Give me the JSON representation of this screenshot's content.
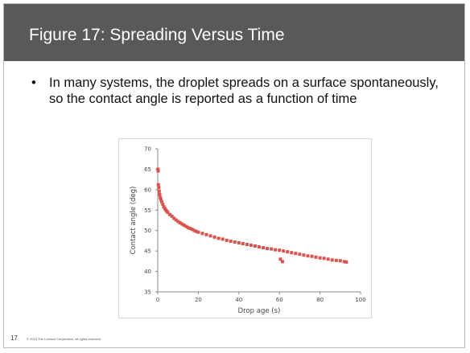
{
  "slide": {
    "title": "Figure 17: Spreading Versus Time",
    "bullet_symbol": "•",
    "bullet_text": "In many systems, the droplet spreads on a surface spontaneously, so the contact angle is reported as a function of time",
    "page_number": "17",
    "copyright": "© 2013 The Lubrizol Corporation, all rights reserved."
  },
  "colors": {
    "title_bar": "#595959",
    "marker": "#d9534f"
  },
  "chart_data": {
    "type": "scatter",
    "xlabel": "Drop age  (s)",
    "ylabel": "Contact angle  (deg)",
    "xlim": [
      0,
      100
    ],
    "ylim": [
      35,
      70
    ],
    "x_ticks": [
      "0",
      "20",
      "40",
      "60",
      "80",
      "100"
    ],
    "y_ticks": [
      "35",
      "40",
      "45",
      "50",
      "55",
      "60",
      "65",
      "70"
    ],
    "grid": false,
    "series": [
      {
        "points": [
          [
            0.1,
            65.0
          ],
          [
            0.2,
            64.6
          ],
          [
            0.3,
            61.2
          ],
          [
            0.5,
            60.5
          ],
          [
            0.7,
            59.6
          ],
          [
            1.0,
            58.8
          ],
          [
            1.3,
            58.0
          ],
          [
            1.6,
            57.5
          ],
          [
            2.0,
            57.0
          ],
          [
            2.5,
            56.4
          ],
          [
            3.0,
            55.8
          ],
          [
            3.5,
            55.4
          ],
          [
            4.0,
            55.0
          ],
          [
            4.5,
            54.7
          ],
          [
            5.0,
            54.4
          ],
          [
            6.0,
            53.9
          ],
          [
            7.0,
            53.5
          ],
          [
            8.0,
            53.0
          ],
          [
            9.0,
            52.6
          ],
          [
            10.0,
            52.2
          ],
          [
            11.0,
            51.9
          ],
          [
            12.0,
            51.6
          ],
          [
            13.0,
            51.3
          ],
          [
            14.0,
            51.0
          ],
          [
            15.0,
            50.7
          ],
          [
            16.0,
            50.5
          ],
          [
            17.0,
            50.3
          ],
          [
            18.0,
            50.0
          ],
          [
            19.0,
            49.8
          ],
          [
            20.0,
            49.6
          ],
          [
            22.0,
            49.3
          ],
          [
            24.0,
            49.0
          ],
          [
            26.0,
            48.7
          ],
          [
            28.0,
            48.4
          ],
          [
            30.0,
            48.1
          ],
          [
            32.0,
            47.9
          ],
          [
            34.0,
            47.6
          ],
          [
            36.0,
            47.4
          ],
          [
            38.0,
            47.2
          ],
          [
            40.0,
            47.0
          ],
          [
            42.0,
            46.8
          ],
          [
            44.0,
            46.6
          ],
          [
            46.0,
            46.4
          ],
          [
            48.0,
            46.2
          ],
          [
            50.0,
            46.0
          ],
          [
            52.0,
            45.8
          ],
          [
            54.0,
            45.6
          ],
          [
            56.0,
            45.5
          ],
          [
            58.0,
            45.3
          ],
          [
            60.0,
            45.2
          ],
          [
            60.5,
            43.0
          ],
          [
            61.5,
            42.4
          ],
          [
            62.0,
            45.0
          ],
          [
            64.0,
            44.8
          ],
          [
            66.0,
            44.6
          ],
          [
            68.0,
            44.4
          ],
          [
            70.0,
            44.2
          ],
          [
            72.0,
            44.0
          ],
          [
            74.0,
            43.8
          ],
          [
            76.0,
            43.7
          ],
          [
            78.0,
            43.5
          ],
          [
            80.0,
            43.3
          ],
          [
            82.0,
            43.2
          ],
          [
            84.0,
            43.0
          ],
          [
            86.0,
            42.8
          ],
          [
            88.0,
            42.7
          ],
          [
            90.0,
            42.6
          ],
          [
            92.0,
            42.4
          ],
          [
            93.0,
            42.3
          ]
        ]
      }
    ]
  }
}
